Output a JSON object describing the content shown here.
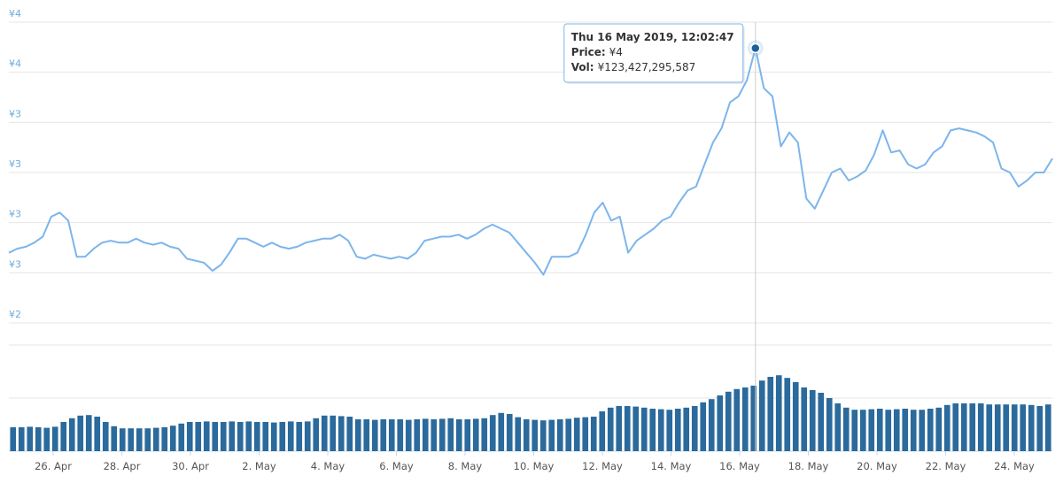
{
  "chart_data": {
    "type": "line",
    "x_ticks": [
      "26. Apr",
      "28. Apr",
      "30. Apr",
      "2. May",
      "4. May",
      "6. May",
      "8. May",
      "10. May",
      "12. May",
      "14. May",
      "16. May",
      "18. May",
      "20. May",
      "22. May",
      "24. May"
    ],
    "ylim": [
      2.25,
      3.75
    ],
    "yticks": [
      {
        "value": 3.75,
        "label": "¥4"
      },
      {
        "value": 3.5,
        "label": "¥4"
      },
      {
        "value": 3.25,
        "label": "¥3"
      },
      {
        "value": 3.0,
        "label": "¥3"
      },
      {
        "value": 2.75,
        "label": "¥3"
      },
      {
        "value": 2.5,
        "label": "¥3"
      },
      {
        "value": 2.25,
        "label": "¥2"
      }
    ],
    "y2lim": [
      0,
      200000000000
    ],
    "grid": true,
    "series": [
      {
        "color": "#7cb5ec",
        "values": [
          2.6,
          2.62,
          2.63,
          2.65,
          2.68,
          2.78,
          2.8,
          2.76,
          2.58,
          2.58,
          2.62,
          2.65,
          2.66,
          2.65,
          2.65,
          2.67,
          2.65,
          2.64,
          2.65,
          2.63,
          2.62,
          2.57,
          2.56,
          2.55,
          2.51,
          2.54,
          2.6,
          2.67,
          2.67,
          2.65,
          2.63,
          2.65,
          2.63,
          2.62,
          2.63,
          2.65,
          2.66,
          2.67,
          2.67,
          2.69,
          2.66,
          2.58,
          2.57,
          2.59,
          2.58,
          2.57,
          2.58,
          2.57,
          2.6,
          2.66,
          2.67,
          2.68,
          2.68,
          2.69,
          2.67,
          2.69,
          2.72,
          2.74,
          2.72,
          2.7,
          2.65,
          2.6,
          2.55,
          2.49,
          2.58,
          2.58,
          2.58,
          2.6,
          2.69,
          2.8,
          2.85,
          2.76,
          2.78,
          2.6,
          2.66,
          2.69,
          2.72,
          2.76,
          2.78,
          2.85,
          2.91,
          2.93,
          3.04,
          3.15,
          3.22,
          3.35,
          3.38,
          3.46,
          3.62,
          3.42,
          3.38,
          3.13,
          3.2,
          3.15,
          2.87,
          2.82,
          2.91,
          3.0,
          3.02,
          2.96,
          2.98,
          3.01,
          3.09,
          3.21,
          3.1,
          3.11,
          3.04,
          3.02,
          3.04,
          3.1,
          3.13,
          3.21,
          3.22,
          3.21,
          3.2,
          3.18,
          3.15,
          3.02,
          3.0,
          2.93,
          2.96,
          3.0,
          3.0,
          3.07
        ]
      },
      {
        "type": "bar",
        "axis": "y2",
        "color": "#2b6a9c",
        "values": [
          45000000000,
          45000000000,
          46000000000,
          45000000000,
          44000000000,
          46000000000,
          55000000000,
          62000000000,
          67000000000,
          68000000000,
          65000000000,
          55000000000,
          47000000000,
          43000000000,
          43000000000,
          43000000000,
          43000000000,
          44000000000,
          45000000000,
          48000000000,
          52000000000,
          55000000000,
          55000000000,
          56000000000,
          55000000000,
          55000000000,
          56000000000,
          55000000000,
          56000000000,
          55000000000,
          55000000000,
          54000000000,
          55000000000,
          56000000000,
          55000000000,
          56000000000,
          62000000000,
          67000000000,
          67000000000,
          66000000000,
          65000000000,
          60000000000,
          60000000000,
          59000000000,
          60000000000,
          60000000000,
          60000000000,
          59000000000,
          60000000000,
          61000000000,
          60000000000,
          61000000000,
          62000000000,
          60000000000,
          60000000000,
          61000000000,
          62000000000,
          68000000000,
          72000000000,
          70000000000,
          64000000000,
          60000000000,
          59000000000,
          58000000000,
          59000000000,
          60000000000,
          61000000000,
          63000000000,
          64000000000,
          65000000000,
          75000000000,
          82000000000,
          85000000000,
          85000000000,
          84000000000,
          82000000000,
          80000000000,
          79000000000,
          78000000000,
          80000000000,
          82000000000,
          85000000000,
          92000000000,
          98000000000,
          105000000000,
          112000000000,
          117000000000,
          120000000000,
          123427295587,
          133000000000,
          140000000000,
          143000000000,
          138000000000,
          130000000000,
          120000000000,
          115000000000,
          110000000000,
          100000000000,
          90000000000,
          82000000000,
          78000000000,
          78000000000,
          79000000000,
          80000000000,
          78000000000,
          79000000000,
          80000000000,
          78000000000,
          78000000000,
          80000000000,
          82000000000,
          87000000000,
          90000000000,
          90000000000,
          90000000000,
          90000000000,
          88000000000,
          88000000000,
          88000000000,
          88000000000,
          88000000000,
          87000000000,
          85000000000,
          88000000000
        ]
      }
    ],
    "tooltip": {
      "title": "Thu 16 May 2019, 12:02:47",
      "price_label": "Price:",
      "price": "¥4",
      "volume_label": "Vol:",
      "volume": "¥123,427,295,587"
    }
  }
}
